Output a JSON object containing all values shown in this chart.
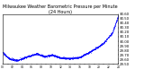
{
  "title": "Milwaukee Weather Barometric Pressure per Minute (24 Hours)",
  "title_fontsize": 3.5,
  "line_color": "blue",
  "marker_size": 0.8,
  "background_color": "#ffffff",
  "grid_color": "#aaaaaa",
  "ylim": [
    29.5,
    30.6
  ],
  "xlim": [
    0,
    1440
  ],
  "ytick_fontsize": 2.8,
  "xtick_fontsize": 2.2,
  "num_points": 1440
}
